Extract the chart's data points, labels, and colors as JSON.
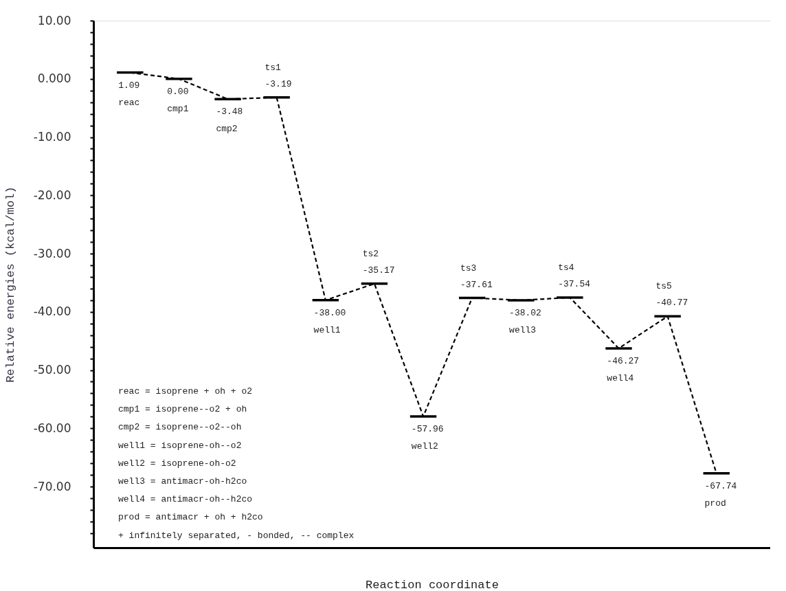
{
  "chart_data": {
    "type": "line",
    "line_style": "dashed",
    "xlabel": "Reaction coordinate",
    "ylabel": "Relative energies (kcal/mol)",
    "categories": [
      "reac",
      "cmp1",
      "cmp2",
      "ts1",
      "well1",
      "ts2",
      "well2",
      "ts3",
      "well3",
      "ts4",
      "well4",
      "ts5",
      "prod"
    ],
    "values": [
      1.09,
      0.0,
      -3.48,
      -3.19,
      -38.0,
      -35.17,
      -57.96,
      -37.61,
      -38.02,
      -37.54,
      -46.27,
      -40.77,
      -67.74
    ],
    "value_labels": [
      "1.09",
      "0.00",
      "-3.48",
      "-3.19",
      "-38.00",
      "-35.17",
      "-57.96",
      "-37.61",
      "-38.02",
      "-37.54",
      "-46.27",
      "-40.77",
      "-67.74"
    ],
    "color": "#000000",
    "ylim": [
      -80.5,
      10
    ],
    "yticks": [
      {
        "value": 10,
        "label": "10.00"
      },
      {
        "value": 8,
        "label": null
      },
      {
        "value": 6,
        "label": null
      },
      {
        "value": 4,
        "label": null
      },
      {
        "value": 2,
        "label": null
      },
      {
        "value": 0,
        "label": "0.000"
      },
      {
        "value": -2,
        "label": null
      },
      {
        "value": -4,
        "label": null
      },
      {
        "value": -6,
        "label": null
      },
      {
        "value": -8,
        "label": null
      },
      {
        "value": -10,
        "label": "-10.00"
      },
      {
        "value": -12,
        "label": null
      },
      {
        "value": -14,
        "label": null
      },
      {
        "value": -16,
        "label": null
      },
      {
        "value": -18,
        "label": null
      },
      {
        "value": -20,
        "label": "-20.00"
      },
      {
        "value": -22,
        "label": null
      },
      {
        "value": -24,
        "label": null
      },
      {
        "value": -26,
        "label": null
      },
      {
        "value": -28,
        "label": null
      },
      {
        "value": -30,
        "label": "-30.00"
      },
      {
        "value": -32,
        "label": null
      },
      {
        "value": -34,
        "label": null
      },
      {
        "value": -36,
        "label": null
      },
      {
        "value": -38,
        "label": null
      },
      {
        "value": -40,
        "label": "-40.00"
      },
      {
        "value": -42,
        "label": null
      },
      {
        "value": -44,
        "label": null
      },
      {
        "value": -46,
        "label": null
      },
      {
        "value": -48,
        "label": null
      },
      {
        "value": -50,
        "label": "-50.00"
      },
      {
        "value": -52,
        "label": null
      },
      {
        "value": -54,
        "label": null
      },
      {
        "value": -56,
        "label": null
      },
      {
        "value": -58,
        "label": null
      },
      {
        "value": -60,
        "label": "-60.00"
      },
      {
        "value": -62,
        "label": null
      },
      {
        "value": -64,
        "label": null
      },
      {
        "value": -66,
        "label": null
      },
      {
        "value": -68,
        "label": null
      },
      {
        "value": -70,
        "label": "-70.00"
      },
      {
        "value": -72,
        "label": null
      },
      {
        "value": -74,
        "label": null
      },
      {
        "value": -76,
        "label": null
      },
      {
        "value": -78,
        "label": null
      }
    ],
    "grid": false,
    "annotations": [
      "reac = isoprene + oh + o2",
      "cmp1 = isoprene--o2 + oh",
      "cmp2 = isoprene--o2--oh",
      "well1 = isoprene-oh--o2",
      "well2 = isoprene-oh-o2",
      "well3 = antimacr-oh-h2co",
      "well4 = antimacr-oh--h2co",
      "prod = antimacr + oh + h2co",
      "+ infinitely separated, - bonded, -- complex"
    ]
  }
}
